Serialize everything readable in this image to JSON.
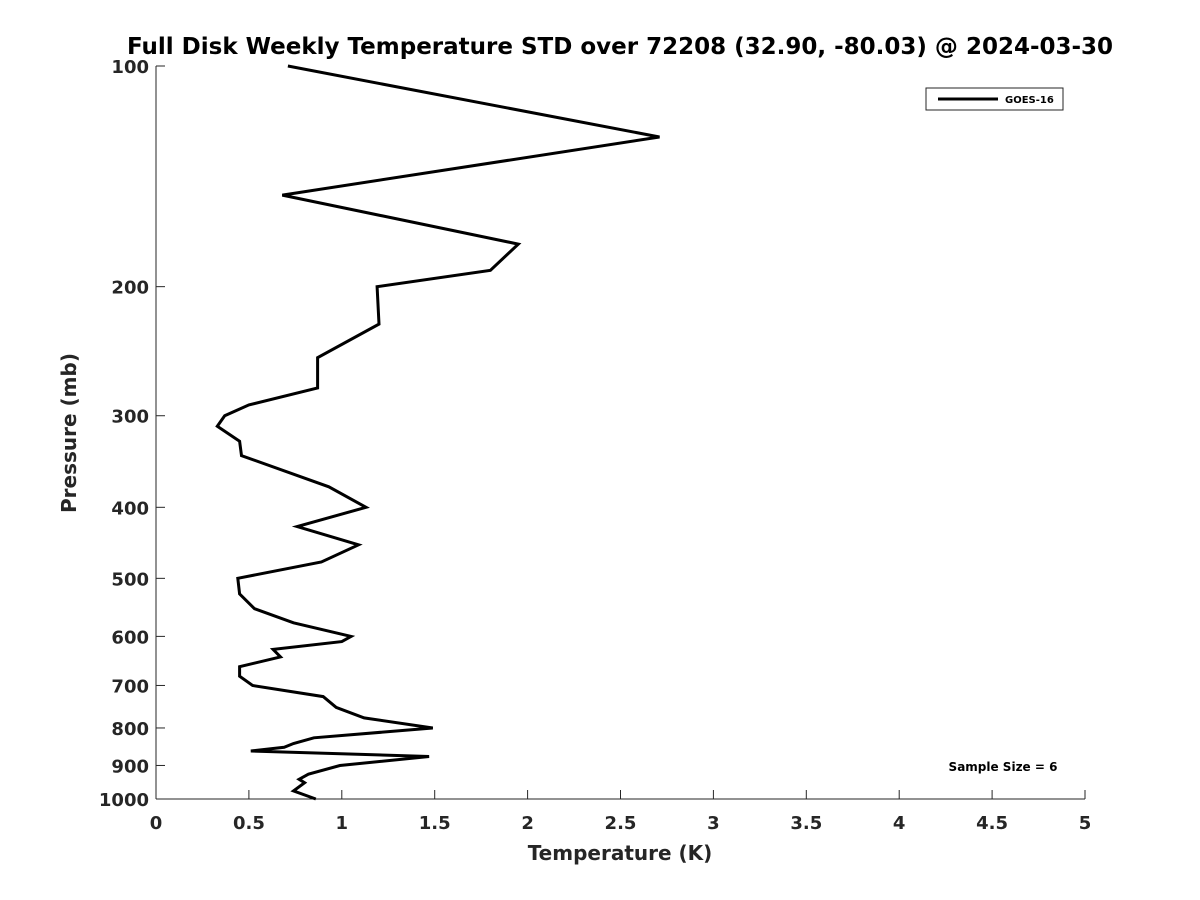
{
  "chart_data": {
    "type": "line",
    "title": "Full Disk Weekly Temperature STD over 72208 (32.90, -80.03) @ 2024-03-30",
    "xlabel": "Temperature (K)",
    "ylabel": "Pressure (mb)",
    "xlim": [
      0,
      5
    ],
    "ylim": [
      100,
      1000
    ],
    "y_scale": "log",
    "y_reversed": true,
    "x_ticks": [
      "0",
      "0.5",
      "1",
      "1.5",
      "2",
      "2.5",
      "3",
      "3.5",
      "4",
      "4.5",
      "5"
    ],
    "y_ticks": [
      "100",
      "200",
      "300",
      "400",
      "500",
      "600",
      "700",
      "800",
      "900",
      "1000"
    ],
    "grid": false,
    "legend_position": "top-right",
    "series": [
      {
        "name": "GOES-16",
        "color": "#000000",
        "points": [
          [
            0.71,
            100
          ],
          [
            2.71,
            125
          ],
          [
            0.68,
            150
          ],
          [
            1.95,
            175
          ],
          [
            1.8,
            190
          ],
          [
            1.19,
            200
          ],
          [
            1.2,
            225
          ],
          [
            0.87,
            250
          ],
          [
            0.87,
            275
          ],
          [
            0.5,
            290
          ],
          [
            0.37,
            300
          ],
          [
            0.33,
            310
          ],
          [
            0.45,
            325
          ],
          [
            0.46,
            340
          ],
          [
            0.93,
            375
          ],
          [
            1.13,
            400
          ],
          [
            0.76,
            425
          ],
          [
            1.09,
            450
          ],
          [
            0.89,
            475
          ],
          [
            0.44,
            500
          ],
          [
            0.45,
            525
          ],
          [
            0.53,
            550
          ],
          [
            0.74,
            575
          ],
          [
            1.05,
            600
          ],
          [
            1.0,
            610
          ],
          [
            0.63,
            625
          ],
          [
            0.67,
            640
          ],
          [
            0.45,
            660
          ],
          [
            0.45,
            680
          ],
          [
            0.52,
            700
          ],
          [
            0.9,
            725
          ],
          [
            0.97,
            750
          ],
          [
            1.12,
            775
          ],
          [
            1.49,
            800
          ],
          [
            0.85,
            825
          ],
          [
            0.74,
            840
          ],
          [
            0.69,
            850
          ],
          [
            0.51,
            860
          ],
          [
            1.47,
            875
          ],
          [
            0.99,
            900
          ],
          [
            0.82,
            925
          ],
          [
            0.77,
            940
          ],
          [
            0.8,
            950
          ],
          [
            0.74,
            975
          ],
          [
            0.86,
            1000
          ]
        ]
      }
    ],
    "annotations": [
      "Sample Size = 6"
    ]
  }
}
